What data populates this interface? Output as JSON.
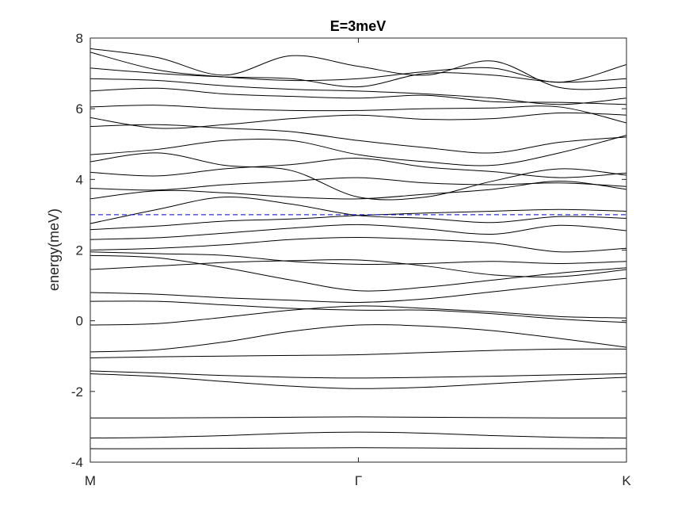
{
  "chart_data": {
    "type": "line",
    "title": "E=3meV",
    "xlabel": "",
    "ylabel": "energy(meV)",
    "ylim": [
      -4,
      8
    ],
    "xlim": [
      0,
      2
    ],
    "yticks": [
      -4,
      -2,
      0,
      2,
      4,
      6,
      8
    ],
    "xticks": [
      {
        "value": 0,
        "label": "M"
      },
      {
        "value": 1,
        "label": "Γ"
      },
      {
        "value": 2,
        "label": "K"
      }
    ],
    "grid": false,
    "band_color": "#000000",
    "reference_line": {
      "y": 3.0,
      "style": "dashed",
      "color": "#0000c8"
    },
    "x": [
      0,
      0.25,
      0.5,
      0.75,
      1.0,
      1.25,
      1.5,
      1.75,
      2.0
    ],
    "series": [
      {
        "values": [
          -3.62,
          -3.62,
          -3.61,
          -3.6,
          -3.59,
          -3.6,
          -3.61,
          -3.62,
          -3.62
        ]
      },
      {
        "values": [
          -3.32,
          -3.3,
          -3.25,
          -3.18,
          -3.15,
          -3.18,
          -3.25,
          -3.3,
          -3.32
        ]
      },
      {
        "values": [
          -2.75,
          -2.75,
          -2.74,
          -2.73,
          -2.72,
          -2.73,
          -2.74,
          -2.75,
          -2.75
        ]
      },
      {
        "values": [
          -1.5,
          -1.58,
          -1.72,
          -1.85,
          -1.92,
          -1.88,
          -1.78,
          -1.68,
          -1.6
        ]
      },
      {
        "values": [
          -1.42,
          -1.48,
          -1.55,
          -1.6,
          -1.62,
          -1.6,
          -1.57,
          -1.53,
          -1.5
        ]
      },
      {
        "values": [
          -1.05,
          -1.02,
          -1.0,
          -0.98,
          -0.96,
          -0.9,
          -0.84,
          -0.8,
          -0.8
        ]
      },
      {
        "values": [
          -0.88,
          -0.82,
          -0.6,
          -0.3,
          -0.12,
          -0.15,
          -0.28,
          -0.5,
          -0.75
        ]
      },
      {
        "values": [
          -0.12,
          -0.08,
          0.1,
          0.3,
          0.42,
          0.35,
          0.25,
          0.12,
          0.08
        ]
      },
      {
        "values": [
          0.55,
          0.55,
          0.45,
          0.35,
          0.3,
          0.3,
          0.2,
          0.05,
          -0.05
        ]
      },
      {
        "values": [
          0.8,
          0.75,
          0.65,
          0.58,
          0.52,
          0.62,
          0.82,
          1.02,
          1.2
        ]
      },
      {
        "values": [
          1.45,
          1.55,
          1.65,
          1.7,
          1.72,
          1.55,
          1.3,
          1.25,
          1.45
        ]
      },
      {
        "values": [
          1.85,
          1.78,
          1.5,
          1.15,
          0.85,
          0.95,
          1.15,
          1.35,
          1.5
        ]
      },
      {
        "values": [
          1.95,
          1.9,
          1.85,
          1.68,
          1.6,
          1.62,
          1.68,
          1.62,
          1.68
        ]
      },
      {
        "values": [
          2.0,
          2.05,
          2.15,
          2.3,
          2.36,
          2.3,
          2.2,
          1.95,
          2.05
        ]
      },
      {
        "values": [
          2.3,
          2.35,
          2.48,
          2.62,
          2.72,
          2.6,
          2.45,
          2.7,
          2.55
        ]
      },
      {
        "values": [
          2.58,
          2.68,
          2.82,
          2.88,
          2.98,
          3.05,
          3.1,
          3.15,
          3.1
        ]
      },
      {
        "values": [
          2.75,
          3.15,
          3.5,
          3.3,
          2.98,
          2.9,
          2.78,
          2.95,
          2.9
        ]
      },
      {
        "values": [
          3.45,
          3.68,
          3.62,
          3.5,
          3.45,
          3.58,
          3.72,
          3.95,
          3.72
        ]
      },
      {
        "values": [
          3.75,
          3.7,
          3.85,
          3.95,
          4.05,
          3.9,
          3.85,
          3.9,
          3.8
        ]
      },
      {
        "values": [
          4.2,
          4.1,
          4.3,
          4.42,
          4.6,
          4.35,
          4.22,
          4.05,
          4.18
        ]
      },
      {
        "values": [
          4.5,
          4.75,
          4.4,
          4.25,
          3.5,
          3.5,
          3.95,
          4.3,
          4.12
        ]
      },
      {
        "values": [
          4.7,
          4.85,
          5.1,
          5.1,
          4.7,
          4.5,
          4.4,
          4.75,
          5.25
        ]
      },
      {
        "values": [
          5.5,
          5.55,
          5.45,
          5.35,
          5.1,
          4.9,
          4.75,
          5.05,
          5.2
        ]
      },
      {
        "values": [
          5.75,
          5.45,
          5.55,
          5.72,
          5.82,
          5.7,
          5.72,
          5.88,
          5.82
        ]
      },
      {
        "values": [
          6.05,
          6.1,
          6.0,
          5.95,
          5.95,
          6.0,
          6.02,
          6.05,
          5.6
        ]
      },
      {
        "values": [
          6.5,
          6.58,
          6.42,
          6.35,
          6.3,
          6.38,
          6.2,
          6.18,
          6.12
        ]
      },
      {
        "values": [
          6.85,
          6.8,
          6.65,
          6.55,
          6.5,
          6.42,
          6.3,
          6.12,
          6.3
        ]
      },
      {
        "values": [
          7.15,
          7.0,
          6.9,
          6.85,
          6.62,
          7.0,
          6.95,
          6.75,
          6.85
        ]
      },
      {
        "values": [
          7.6,
          7.1,
          6.9,
          6.8,
          6.85,
          7.05,
          7.15,
          6.75,
          7.25
        ]
      },
      {
        "values": [
          7.7,
          7.45,
          6.95,
          7.5,
          7.2,
          6.95,
          7.35,
          6.6,
          6.6
        ]
      }
    ]
  }
}
